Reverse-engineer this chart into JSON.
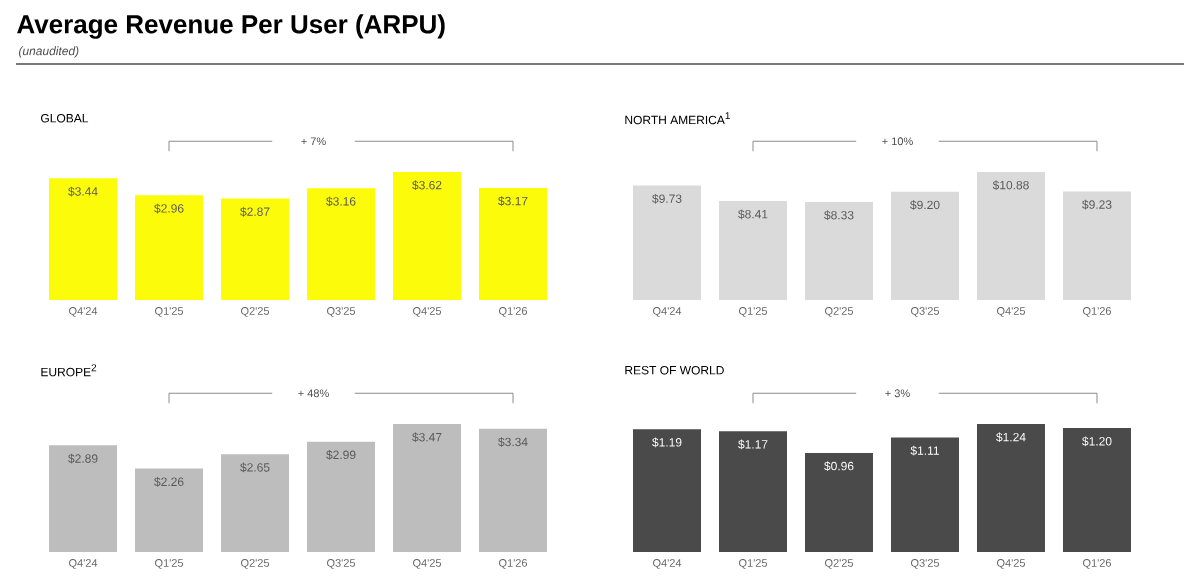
{
  "chart_data": [
    {
      "type": "other",
      "title": "Average Revenue Per User (ARPU)",
      "subtitle": "*(unaudited)*"
    },
    {
      "type": "bar",
      "title": "GLOBAL",
      "categories": [
        "Q4'24",
        "Q1'25",
        "Q2'25",
        "Q3'25",
        "Q4'25",
        "Q1'26"
      ],
      "values": [
        3.44,
        2.96,
        2.87,
        3.16,
        3.62,
        3.17
      ],
      "value_labels": [
        "$3.44",
        "$2.96",
        "$2.87",
        "$3.16",
        "$3.62",
        "$3.17"
      ],
      "color": "#fcfc0a",
      "annotations": [
        "+ 7%"
      ]
    },
    {
      "type": "bar",
      "title": "NORTH AMERICA$^{1}$",
      "categories": [
        "Q4'24",
        "Q1'25",
        "Q2'25",
        "Q3'25",
        "Q4'25",
        "Q1'26"
      ],
      "values": [
        9.73,
        8.41,
        8.33,
        9.2,
        10.88,
        9.23
      ],
      "value_labels": [
        "$9.73",
        "$8.41",
        "$8.33",
        "$9.20",
        "$10.88",
        "$9.23"
      ],
      "color": "#dadada",
      "annotations": [
        "+ 10%"
      ]
    },
    {
      "type": "bar",
      "title": "EUROPE$^{2}$",
      "categories": [
        "Q4'24",
        "Q1'25",
        "Q2'25",
        "Q3'25",
        "Q4'25",
        "Q1'26"
      ],
      "values": [
        2.89,
        2.26,
        2.65,
        2.99,
        3.47,
        3.34
      ],
      "value_labels": [
        "$2.89",
        "$2.26",
        "$2.65",
        "$2.99",
        "$3.47",
        "$3.34"
      ],
      "color": "#bdbdbd",
      "annotations": [
        "+ 48%"
      ]
    },
    {
      "type": "bar",
      "title": "REST OF WORLD",
      "categories": [
        "Q4'24",
        "Q1'25",
        "Q2'25",
        "Q3'25",
        "Q4'25",
        "Q1'26"
      ],
      "values": [
        1.19,
        1.17,
        0.96,
        1.11,
        1.24,
        1.2
      ],
      "value_labels": [
        "$1.19",
        "$1.17",
        "$0.96",
        "$1.11",
        "$1.24",
        "$1.20"
      ],
      "color": "#4a4a4a",
      "annotations": [
        "+ 3%"
      ]
    }
  ]
}
